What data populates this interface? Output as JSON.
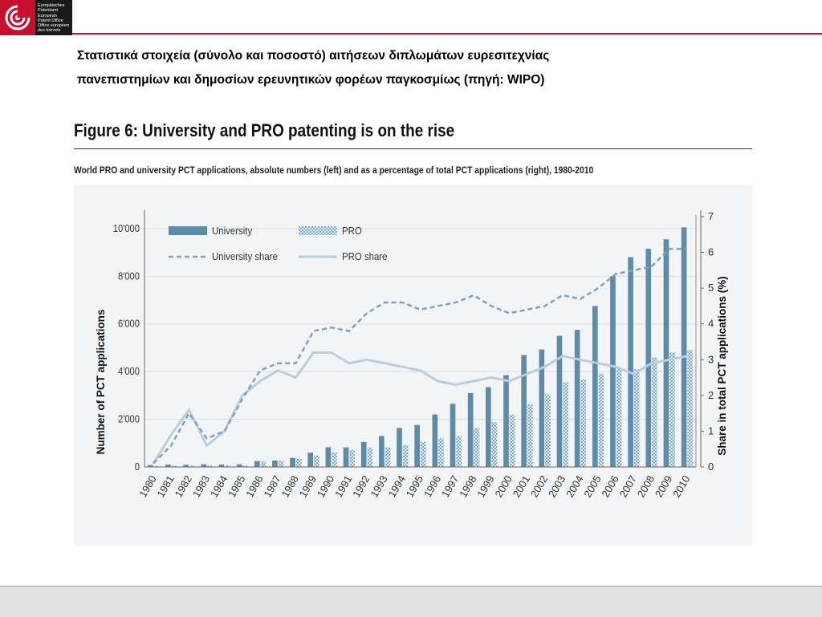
{
  "header": {
    "logo_lines": [
      "Europäisches",
      "Patentamt",
      "European",
      "Patent Office",
      "Office européen",
      "des brevets"
    ]
  },
  "slide": {
    "title_line1": "Στατιστικά στοιχεία (σύνολο και ποσοστό) αιτήσεων διπλωμάτων ευρεσιτεχνίας",
    "title_line2": "πανεπιστημίων και δημοσίων ερευνητικών φορέων παγκοσμίως (πηγή: WIPO)"
  },
  "figure": {
    "heading": "Figure 6: University and PRO patenting is on the rise",
    "subtitle": "World PRO and university PCT applications, absolute numbers (left) and as a percentage of total PCT applications (right), 1980-2010"
  },
  "colors": {
    "university": "#5e8ca8",
    "pro": "#8cb6cc",
    "university_share": "#7ea3bf",
    "pro_share": "#b9cfdd"
  },
  "chart_data": {
    "type": "bar",
    "categories": [
      "1980",
      "1981",
      "1982",
      "1983",
      "1984",
      "1985",
      "1986",
      "1987",
      "1988",
      "1989",
      "1990",
      "1991",
      "1992",
      "1993",
      "1994",
      "1995",
      "1996",
      "1997",
      "1998",
      "1999",
      "2000",
      "2001",
      "2002",
      "2003",
      "2004",
      "2005",
      "2006",
      "2007",
      "2008",
      "2009",
      "2010"
    ],
    "series": [
      {
        "name": "University",
        "axis": "left",
        "kind": "bar",
        "values": [
          80,
          100,
          90,
          110,
          100,
          110,
          250,
          270,
          380,
          600,
          830,
          820,
          1050,
          1300,
          1640,
          1760,
          2200,
          2650,
          3100,
          3350,
          3850,
          4700,
          4930,
          5500,
          5750,
          6750,
          8000,
          8800,
          9150,
          9550,
          10050
        ]
      },
      {
        "name": "PRO",
        "axis": "left",
        "kind": "bar",
        "values": [
          40,
          50,
          60,
          60,
          60,
          60,
          240,
          260,
          340,
          480,
          620,
          720,
          820,
          830,
          920,
          1060,
          1200,
          1300,
          1640,
          1880,
          2200,
          2630,
          3050,
          3550,
          3680,
          3920,
          4100,
          4100,
          4600,
          4800,
          4900
        ]
      },
      {
        "name": "University share",
        "axis": "right",
        "kind": "line",
        "values": [
          0.1,
          0.6,
          1.5,
          0.8,
          1.0,
          1.9,
          2.7,
          2.9,
          2.9,
          3.8,
          3.9,
          3.8,
          4.3,
          4.6,
          4.6,
          4.4,
          4.5,
          4.6,
          4.8,
          4.5,
          4.3,
          4.4,
          4.5,
          4.8,
          4.7,
          5.0,
          5.4,
          5.5,
          5.6,
          6.1,
          6.1
        ]
      },
      {
        "name": "PRO share",
        "axis": "right",
        "kind": "line",
        "values": [
          0.1,
          0.9,
          1.6,
          0.6,
          1.0,
          2.0,
          2.4,
          2.7,
          2.5,
          3.2,
          3.2,
          2.9,
          3.0,
          2.9,
          2.8,
          2.7,
          2.4,
          2.3,
          2.4,
          2.5,
          2.4,
          2.6,
          2.8,
          3.1,
          3.0,
          2.9,
          2.8,
          2.6,
          2.9,
          3.0,
          3.1
        ]
      }
    ],
    "ylabel": "Number of PCT applications",
    "y2label": "Share in total PCT applications (%)",
    "ylim": [
      0,
      10500
    ],
    "y2lim": [
      0,
      7
    ],
    "yticks": [
      "0",
      "2'000",
      "4'000",
      "6'000",
      "8'000",
      "10'000"
    ],
    "y2ticks": [
      "0",
      "1",
      "2",
      "3",
      "4",
      "5",
      "6",
      "7"
    ],
    "xticks": [
      "1980",
      "1981",
      "1982",
      "1983",
      "1984",
      "1985",
      "1986",
      "1987",
      "1988",
      "1989",
      "1990",
      "1991",
      "1992",
      "1993",
      "1994",
      "1995",
      "1996",
      "1997",
      "1998",
      "1999",
      "2000",
      "2001",
      "2002",
      "2003",
      "2004",
      "2005",
      "2006",
      "2007",
      "2008",
      "2009",
      "2010"
    ],
    "grid": true,
    "legend_position": "top-left"
  }
}
